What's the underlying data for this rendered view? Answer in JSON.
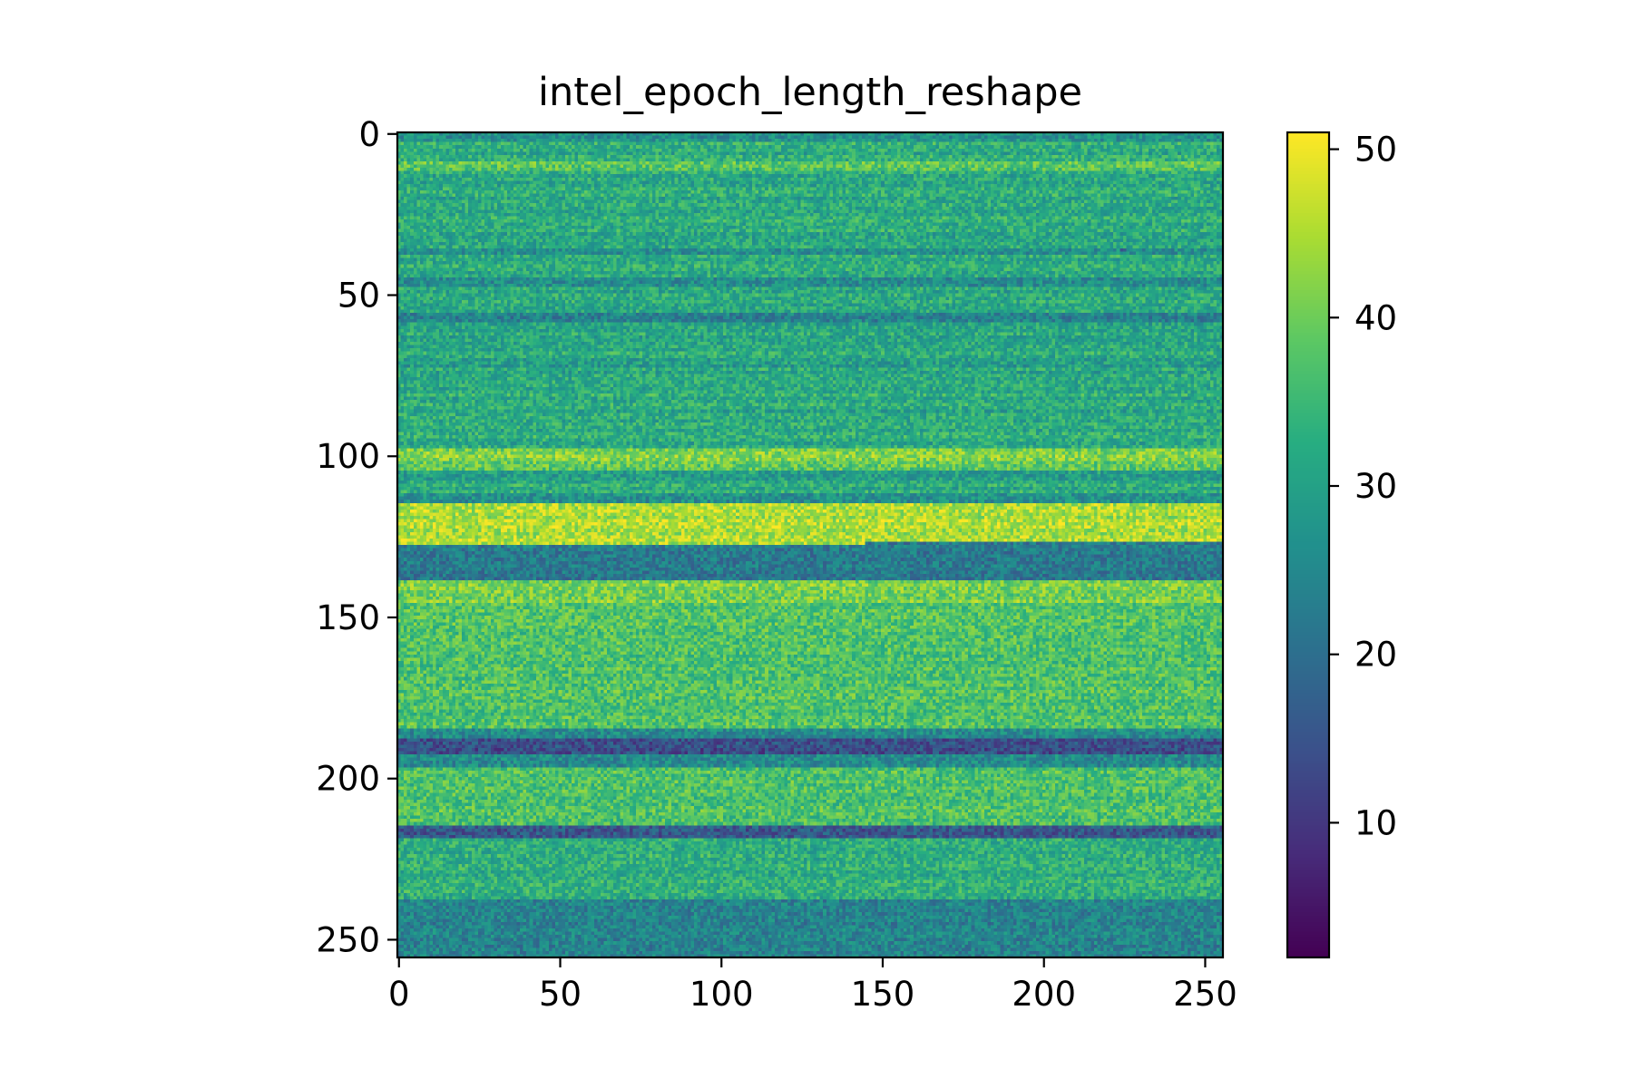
{
  "chart_data": {
    "type": "heatmap",
    "title": "intel_epoch_length_reshape",
    "xlabel": "",
    "ylabel": "",
    "rows": 256,
    "cols": 256,
    "xlim": [
      0,
      255
    ],
    "ylim": [
      255,
      0
    ],
    "x_ticks": [
      0,
      50,
      100,
      150,
      200,
      250
    ],
    "y_ticks": [
      0,
      50,
      100,
      150,
      200,
      250
    ],
    "x_tick_labels": [
      "0",
      "50",
      "100",
      "150",
      "200",
      "250"
    ],
    "y_tick_labels": [
      "0",
      "50",
      "100",
      "150",
      "200",
      "250"
    ],
    "colormap": "viridis",
    "colorbar": {
      "vmin": 2,
      "vmax": 51,
      "ticks": [
        10,
        20,
        30,
        40,
        50
      ],
      "tick_labels": [
        "10",
        "20",
        "30",
        "40",
        "50"
      ]
    },
    "base_value": 32,
    "noise_amplitude": 6,
    "row_bands": [
      {
        "from": 0,
        "to": 2,
        "value": 27,
        "start_col": 0,
        "end_col": 255
      },
      {
        "from": 9,
        "to": 11,
        "value": 38,
        "start_col": 0,
        "end_col": 255
      },
      {
        "from": 36,
        "to": 37,
        "value": 27,
        "start_col": 0,
        "end_col": 255
      },
      {
        "from": 45,
        "to": 47,
        "value": 26,
        "start_col": 0,
        "end_col": 255
      },
      {
        "from": 56,
        "to": 58,
        "value": 24,
        "start_col": 0,
        "end_col": 255
      },
      {
        "from": 70,
        "to": 72,
        "value": 29,
        "start_col": 0,
        "end_col": 255
      },
      {
        "from": 98,
        "to": 101,
        "value": 42,
        "start_col": 0,
        "end_col": 255
      },
      {
        "from": 102,
        "to": 104,
        "value": 39,
        "start_col": 0,
        "end_col": 255
      },
      {
        "from": 105,
        "to": 107,
        "value": 29,
        "start_col": 0,
        "end_col": 255
      },
      {
        "from": 112,
        "to": 114,
        "value": 27,
        "start_col": 0,
        "end_col": 255
      },
      {
        "from": 115,
        "to": 127,
        "value": 45,
        "start_col": 0,
        "end_col": 255
      },
      {
        "from": 127,
        "to": 127,
        "value": 22,
        "start_col": 145,
        "end_col": 255
      },
      {
        "from": 128,
        "to": 138,
        "value": 22,
        "start_col": 0,
        "end_col": 255
      },
      {
        "from": 139,
        "to": 145,
        "value": 41,
        "start_col": 0,
        "end_col": 255
      },
      {
        "from": 146,
        "to": 184,
        "value": 37,
        "start_col": 0,
        "end_col": 255
      },
      {
        "from": 185,
        "to": 187,
        "value": 26,
        "start_col": 0,
        "end_col": 255
      },
      {
        "from": 188,
        "to": 192,
        "value": 14,
        "start_col": 0,
        "end_col": 255
      },
      {
        "from": 193,
        "to": 196,
        "value": 26,
        "start_col": 0,
        "end_col": 255
      },
      {
        "from": 197,
        "to": 214,
        "value": 37,
        "start_col": 0,
        "end_col": 255
      },
      {
        "from": 215,
        "to": 218,
        "value": 16,
        "start_col": 0,
        "end_col": 255
      },
      {
        "from": 219,
        "to": 237,
        "value": 33,
        "start_col": 0,
        "end_col": 255
      },
      {
        "from": 238,
        "to": 255,
        "value": 24,
        "start_col": 0,
        "end_col": 255
      }
    ],
    "spots": [
      {
        "row": 36,
        "col": 224,
        "value": 14
      }
    ]
  }
}
